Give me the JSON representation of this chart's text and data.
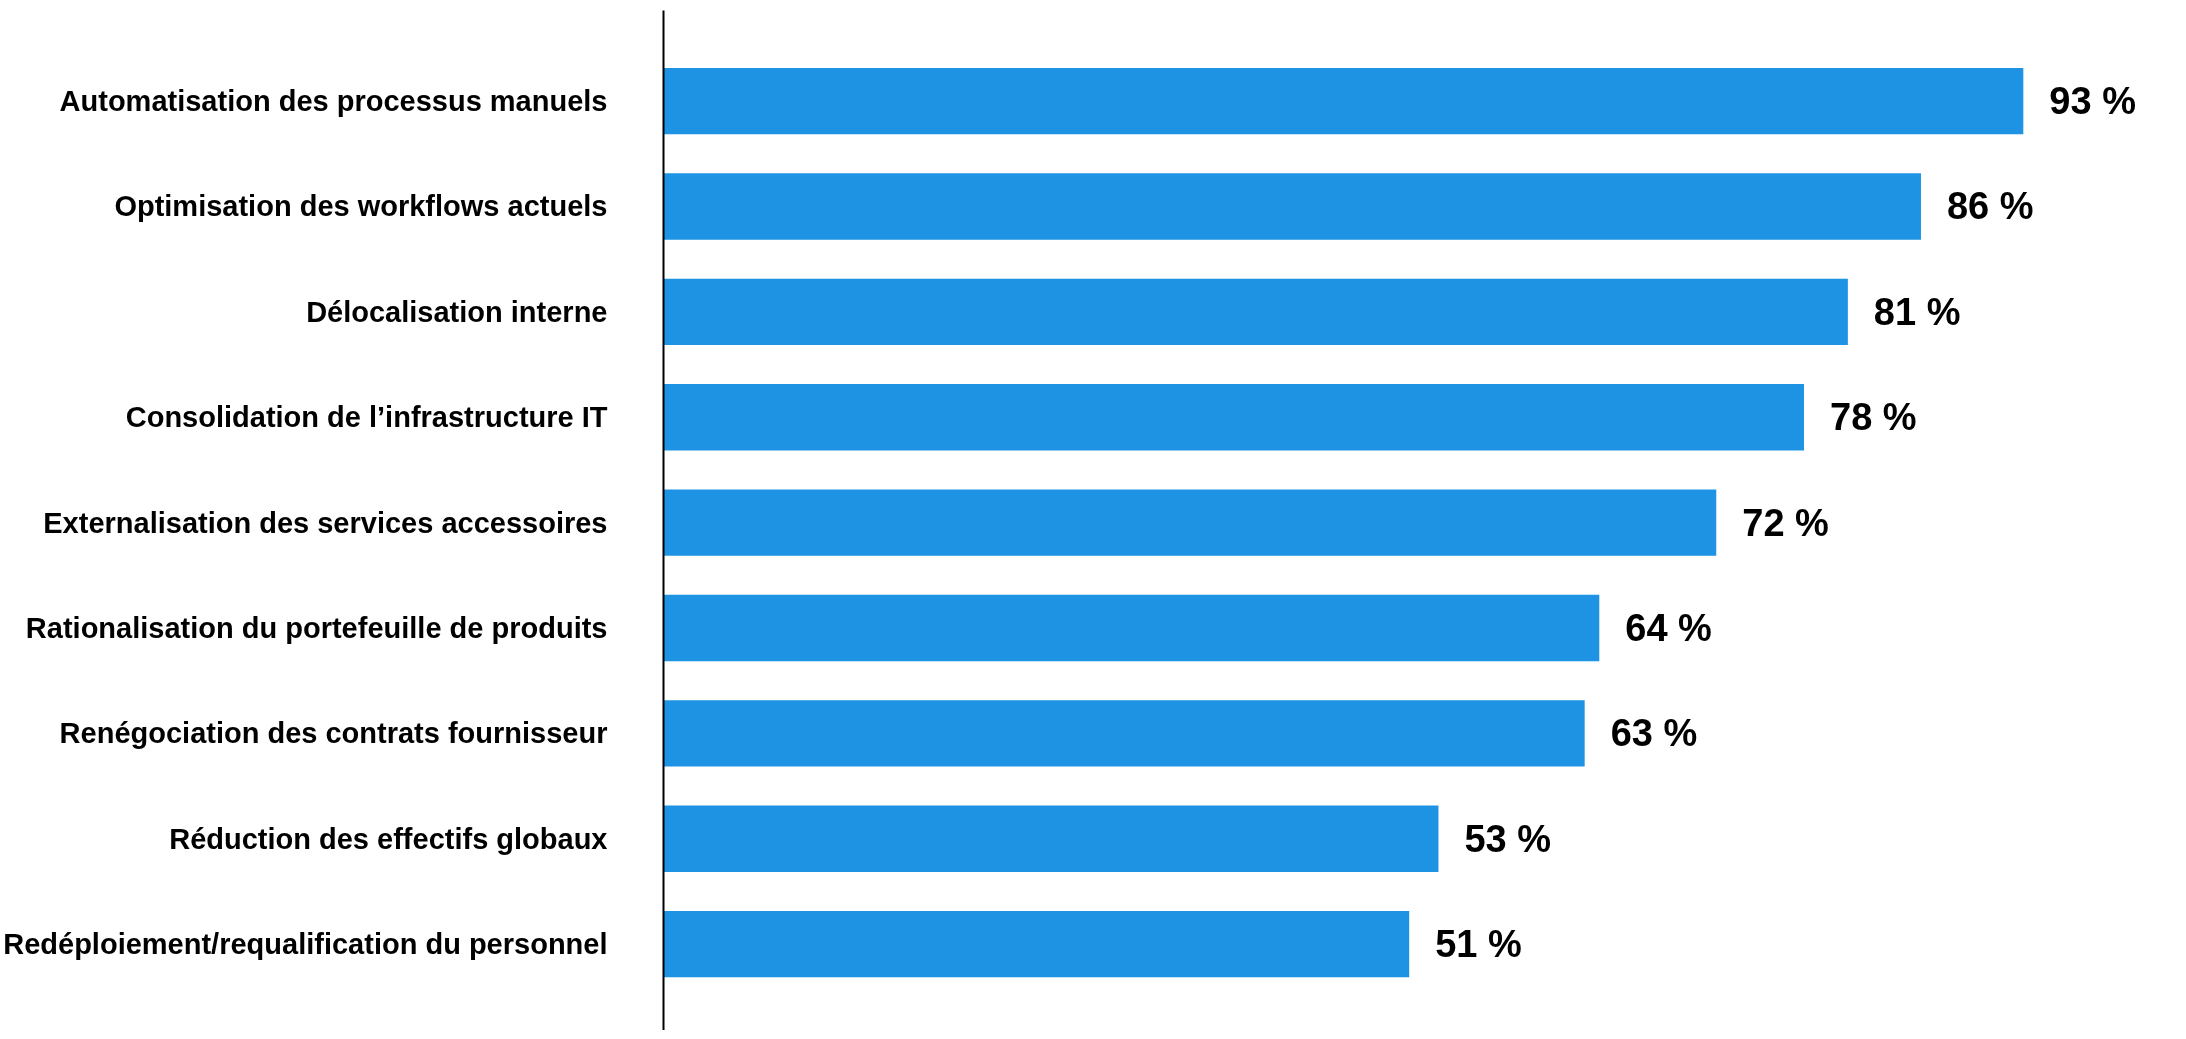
{
  "chart_data": {
    "type": "bar",
    "orientation": "horizontal",
    "categories": [
      "Automatisation des processus manuels",
      "Optimisation des workflows actuels",
      "Délocalisation interne",
      "Consolidation de l’infrastructure IT",
      "Externalisation des services accessoires",
      "Rationalisation du portefeuille de produits",
      "Renégociation des contrats fournisseur",
      "Réduction des effectifs globaux",
      "Redéploiement/requalification du personnel"
    ],
    "values": [
      93,
      86,
      81,
      78,
      72,
      64,
      63,
      53,
      51
    ],
    "value_labels": [
      "93 %",
      "86 %",
      "81 %",
      "78 %",
      "72 %",
      "64 %",
      "63 %",
      "53 %",
      "51 %"
    ],
    "color": "#1e93e4"
  }
}
